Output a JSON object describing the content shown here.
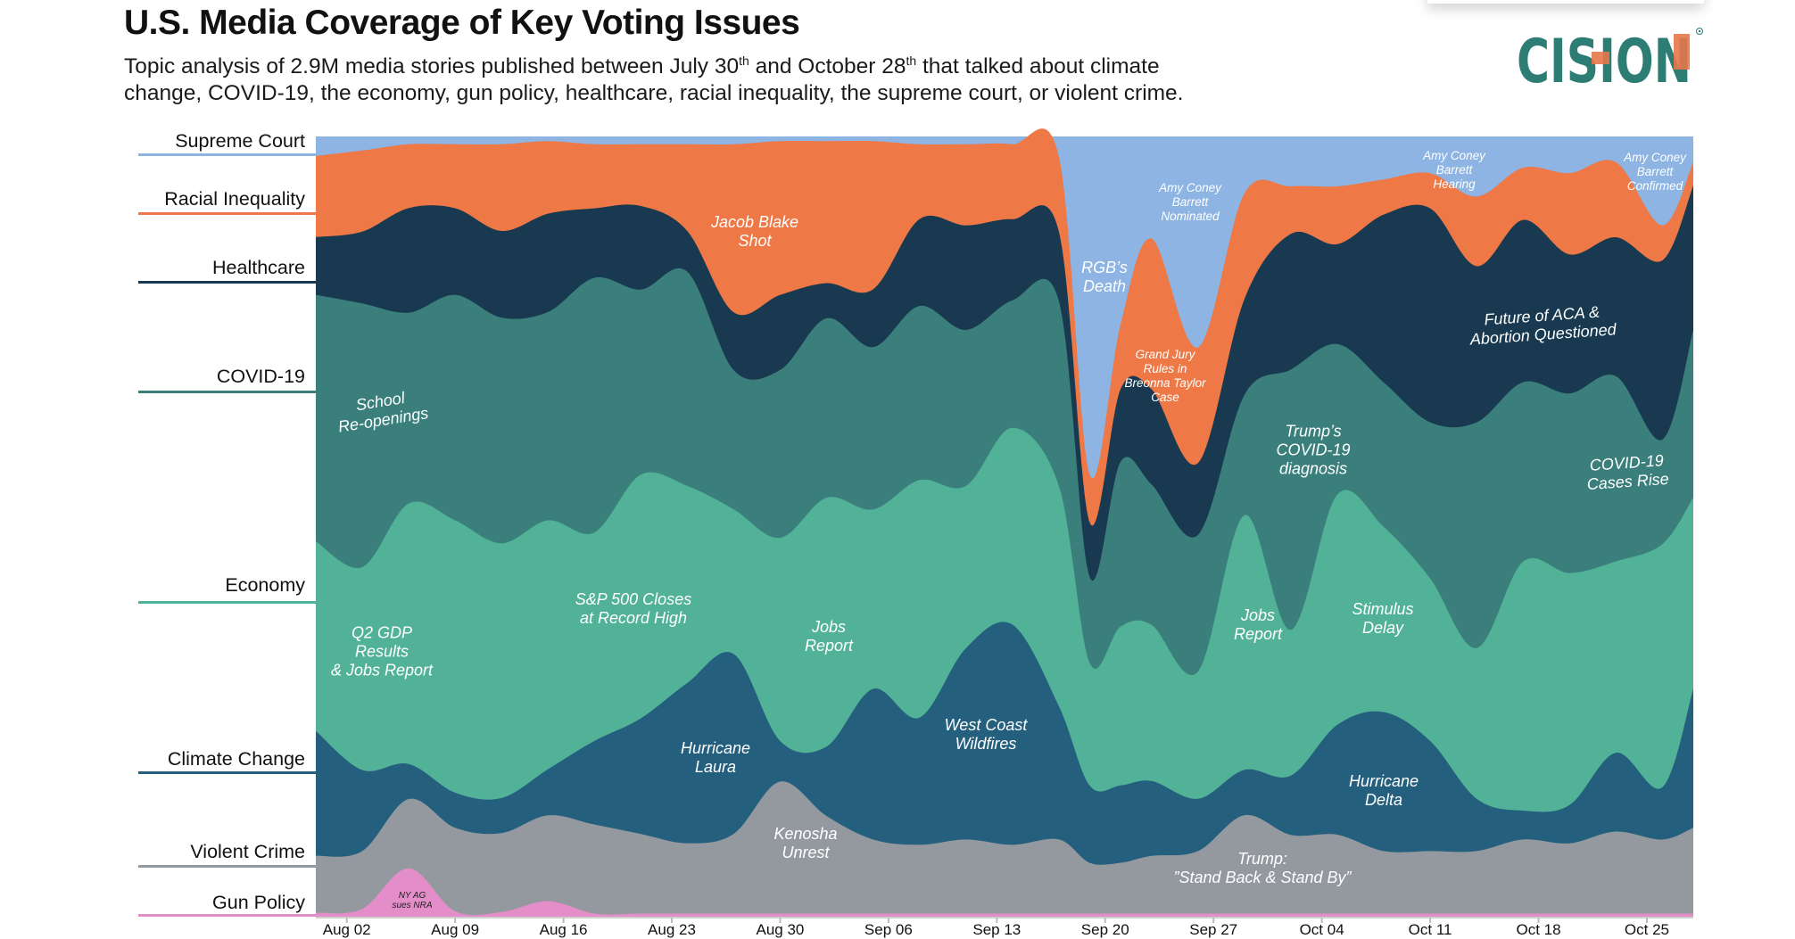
{
  "header": {
    "title": "U.S. Media Coverage of Key Voting Issues",
    "subtitle_line1_a": "Topic analysis of 2.9M media stories published between July 30",
    "subtitle_sup1": "th",
    "subtitle_line1_b": " and October 28",
    "subtitle_sup2": "th",
    "subtitle_line1_c": " that talked about climate",
    "subtitle_line2": "change, COVID-19, the economy, gun policy, healthcare, racial inequality, the supreme court, or violent crime.",
    "logo_text": "CISION",
    "logo_colors": {
      "teal": "#2e7d74",
      "orange": "#e8774a"
    }
  },
  "chart_data": {
    "type": "area",
    "stacking": "percent (100% stacked streamgraph)",
    "title": "U.S. Media Coverage of Key Voting Issues",
    "xlabel": "",
    "ylabel": "",
    "x_ticks": [
      "Aug 02",
      "Aug 09",
      "Aug 16",
      "Aug 23",
      "Aug 30",
      "Sep 06",
      "Sep 13",
      "Sep 20",
      "Sep 27",
      "Oct 04",
      "Oct 11",
      "Oct 18",
      "Oct 25"
    ],
    "xlim": [
      "Jul 31",
      "Oct 28"
    ],
    "ylim": [
      0,
      100
    ],
    "grid": false,
    "legend": "left (labels aligned to layers)",
    "x": [
      "Jul 31",
      "Aug 03",
      "Aug 06",
      "Aug 09",
      "Aug 12",
      "Aug 15",
      "Aug 18",
      "Aug 21",
      "Aug 24",
      "Aug 27",
      "Aug 30",
      "Sep 02",
      "Sep 05",
      "Sep 08",
      "Sep 11",
      "Sep 14",
      "Sep 17",
      "Sep 19",
      "Sep 21",
      "Sep 23",
      "Sep 26",
      "Sep 29",
      "Oct 02",
      "Oct 05",
      "Oct 08",
      "Oct 11",
      "Oct 14",
      "Oct 17",
      "Oct 20",
      "Oct 23",
      "Oct 26",
      "Oct 28"
    ],
    "series": [
      {
        "name": "Gun Policy",
        "color": "#e48ec9",
        "values": [
          0.5,
          1,
          6.2,
          0.7,
          0.6,
          2,
          0.4,
          0.4,
          0.4,
          0.4,
          0.4,
          0.4,
          0.4,
          0.4,
          0.4,
          0.4,
          0.4,
          0.4,
          0.4,
          0.4,
          0.4,
          0.4,
          0.4,
          0.4,
          0.4,
          0.4,
          0.4,
          0.4,
          0.4,
          0.4,
          0.4,
          0.4
        ]
      },
      {
        "name": "Violent Crime",
        "color": "#9499a0",
        "values": [
          7.3,
          7.4,
          8.9,
          10.7,
          10.1,
          11,
          11.4,
          10.2,
          9,
          10.2,
          16.9,
          12.5,
          9.5,
          8.8,
          9.5,
          8.8,
          9.5,
          6.5,
          6.5,
          7.4,
          8,
          12.6,
          10.1,
          10.1,
          8,
          8,
          8,
          9.5,
          9,
          10.5,
          9.5,
          11
        ]
      },
      {
        "name": "Climate Change",
        "color": "#255f7e",
        "values": [
          16,
          10.4,
          4.5,
          4.5,
          4.5,
          5.9,
          10.7,
          14.8,
          20.5,
          23,
          5.2,
          8.9,
          19.3,
          16.3,
          24.5,
          28.2,
          17.1,
          9.9,
          9.9,
          9.6,
          6.7,
          5.8,
          7.6,
          14.1,
          17.8,
          14.1,
          6.7,
          3.7,
          4.9,
          10.1,
          6.7,
          17.8
        ]
      },
      {
        "name": "Economy",
        "color": "#52b297",
        "values": [
          24.3,
          26,
          33.4,
          34.9,
          32.6,
          31.9,
          26.7,
          31.2,
          25.2,
          18.5,
          26,
          31.9,
          23,
          30.4,
          20.8,
          25.2,
          28.2,
          15.7,
          20.3,
          20,
          16.3,
          32.6,
          18.7,
          29.5,
          23.7,
          20.8,
          19.3,
          31.9,
          29.7,
          24.5,
          31.2,
          24.5
        ]
      },
      {
        "name": "COVID-19",
        "color": "#3a7f7b",
        "values": [
          31.6,
          33.8,
          24.5,
          28.9,
          28.9,
          26.7,
          32.6,
          23.7,
          27.4,
          17.8,
          21.5,
          23,
          20.8,
          22.3,
          20,
          16.3,
          23.7,
          11,
          21.1,
          18,
          17.5,
          15.4,
          33.4,
          19.3,
          18.5,
          20,
          28.9,
          23,
          23,
          23.7,
          13.4,
          21.5
        ]
      },
      {
        "name": "Healthcare",
        "color": "#18394f",
        "values": [
          7.4,
          9.2,
          13.4,
          11.1,
          11.1,
          12.6,
          8.9,
          10.7,
          5.2,
          7.4,
          9.6,
          4.5,
          7.4,
          11.1,
          13.4,
          10.4,
          8.9,
          7,
          9.3,
          12.2,
          9.2,
          12.3,
          17.4,
          12.8,
          21.5,
          27.4,
          20,
          20.8,
          17.8,
          17.8,
          23,
          18.5
        ]
      },
      {
        "name": "Racial Inequality",
        "color": "#ee7846",
        "values": [
          10.4,
          10.4,
          8.2,
          8.2,
          11.1,
          9.3,
          8.2,
          7.9,
          11.1,
          21.5,
          19.7,
          18.2,
          19,
          9.6,
          10.4,
          9.6,
          9.6,
          6.1,
          8.3,
          19.3,
          14.8,
          13.5,
          6.1,
          7.4,
          4.5,
          4.5,
          8.9,
          6.7,
          10.4,
          9.6,
          4.5,
          3
        ]
      },
      {
        "name": "Supreme Court",
        "color": "#8db4e2",
        "values": [
          2.5,
          1.8,
          1,
          1,
          1,
          0.6,
          1,
          1,
          1,
          1,
          0.6,
          0.6,
          0.6,
          1,
          1,
          1,
          2.5,
          43.3,
          24,
          13.1,
          27,
          7.3,
          6.4,
          6.4,
          5.5,
          4.7,
          7.7,
          4,
          4.7,
          3.3,
          11.4,
          3.3
        ]
      }
    ],
    "annotations": [
      "School\nRe-openings",
      "Q2 GDP\nResults\n& Jobs Report",
      "S&P 500 Closes\nat Record High",
      "Jacob Blake\nShot",
      "Jobs\nReport",
      "Hurricane\nLaura",
      "Kenosha\nUnrest",
      "West Coast\nWildfires",
      "RGB’s\nDeath",
      "Amy Coney\nBarrett\nNominated",
      "Grand Jury\nRules in\nBreonna Taylor\nCase",
      "Trump’s\nCOVID-19\ndiagnosis",
      "Jobs\nReport",
      "Stimulus\nDelay",
      "Trump:\n”Stand Back & Stand By”",
      "Hurricane\nDelta",
      "Amy Coney\nBarrett\nHearing",
      "Future of ACA &\nAbortion Questioned",
      "COVID-19\nCases Rise",
      "Amy Coney\nBarrett\nConfirmed",
      "NY AG\nsues NRA"
    ]
  }
}
